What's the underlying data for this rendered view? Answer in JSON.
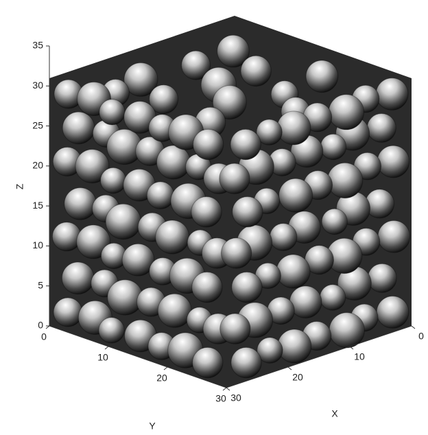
{
  "chart_data": {
    "type": "sphere3d",
    "xlabel": "X",
    "ylabel": "Y",
    "zlabel": "Z",
    "xlim": [
      0,
      30
    ],
    "ylim": [
      0,
      30
    ],
    "zlim": [
      0,
      35
    ],
    "xticks": [
      0,
      10,
      20,
      30
    ],
    "yticks": [
      0,
      10,
      20,
      30
    ],
    "zticks": [
      0,
      5,
      10,
      15,
      20,
      25,
      30,
      35
    ],
    "color": "#ffffff",
    "spheres": {
      "x": [
        29.0,
        28.6,
        29.3,
        28.8,
        29.1,
        28.7,
        29.4,
        29.0,
        28.6,
        29.3,
        28.8,
        29.1,
        28.7,
        29.4,
        29.0,
        28.6,
        29.3,
        28.8,
        29.1,
        28.7,
        29.4,
        29.0,
        28.6,
        29.3,
        28.8,
        29.1,
        28.7,
        29.4,
        29.0,
        28.6,
        29.3,
        28.8,
        29.1,
        28.7,
        29.4,
        29.0,
        28.6,
        29.3,
        28.8,
        29.1,
        28.7,
        29.4,
        29.0,
        28.6,
        29.3,
        28.8,
        29.1,
        28.7,
        29.4,
        2.1,
        6.3,
        9.8,
        14.2,
        18.1,
        21.7,
        26.2,
        3.8,
        7.9,
        12.1,
        16.0,
        20.3,
        24.1,
        28.0,
        1.9,
        6.0,
        10.2,
        13.8,
        18.3,
        22.0,
        26.1,
        4.2,
        8.1,
        11.8,
        16.2,
        19.9,
        24.2,
        27.8,
        2.0,
        5.8,
        10.1,
        14.0,
        17.9,
        22.2,
        26.0,
        3.9,
        8.2,
        12.0,
        15.8,
        20.1,
        23.9,
        28.1,
        2.2,
        6.1,
        9.9,
        14.1,
        18.2,
        21.8,
        26.3,
        5,
        12,
        19,
        25,
        8,
        15,
        22,
        4,
        11,
        18,
        24,
        14
      ],
      "y": [
        2.1,
        6.3,
        9.8,
        14.2,
        18.1,
        21.7,
        26.2,
        3.8,
        7.9,
        12.1,
        16.0,
        20.3,
        24.1,
        28.0,
        1.9,
        6.0,
        10.2,
        13.8,
        18.3,
        22.0,
        26.1,
        4.2,
        8.1,
        11.8,
        16.2,
        19.9,
        24.2,
        27.8,
        2.0,
        5.8,
        10.1,
        14.0,
        17.9,
        22.2,
        26.0,
        3.9,
        8.2,
        12.0,
        15.8,
        20.1,
        23.9,
        28.1,
        2.2,
        6.1,
        9.9,
        14.1,
        18.2,
        21.8,
        26.3,
        29.0,
        28.6,
        29.3,
        28.8,
        29.1,
        28.7,
        29.4,
        29.0,
        28.6,
        29.3,
        28.8,
        29.1,
        28.7,
        29.4,
        29.0,
        28.6,
        29.3,
        28.8,
        29.1,
        28.7,
        29.4,
        29.0,
        28.6,
        29.3,
        28.8,
        29.1,
        28.7,
        29.4,
        29.0,
        28.6,
        29.3,
        28.8,
        29.1,
        28.7,
        29.4,
        29.0,
        28.6,
        29.3,
        28.8,
        29.1,
        28.7,
        29.4,
        29.0,
        28.6,
        29.3,
        28.8,
        29.1,
        28.7,
        29.4,
        5,
        6,
        4,
        6,
        12,
        13,
        11,
        19,
        20,
        18,
        21,
        25
      ],
      "z": [
        2.0,
        2.3,
        1.8,
        2.1,
        1.9,
        2.2,
        2.0,
        6.7,
        7.0,
        6.5,
        6.8,
        6.9,
        6.6,
        6.7,
        11.4,
        11.7,
        11.2,
        11.5,
        11.3,
        11.6,
        11.4,
        16.1,
        16.4,
        15.9,
        16.2,
        16.0,
        16.3,
        16.1,
        20.8,
        21.1,
        20.6,
        20.9,
        20.7,
        21.0,
        20.8,
        25.5,
        25.8,
        25.3,
        25.6,
        25.4,
        25.7,
        25.5,
        29.3,
        29.6,
        29.1,
        29.4,
        29.2,
        29.5,
        29.3,
        2.0,
        2.3,
        1.8,
        2.1,
        1.9,
        2.2,
        2.0,
        6.7,
        7.0,
        6.5,
        6.8,
        6.9,
        6.6,
        6.7,
        11.4,
        11.7,
        11.2,
        11.5,
        11.3,
        11.6,
        11.4,
        16.1,
        16.4,
        15.9,
        16.2,
        16.0,
        16.3,
        16.1,
        20.8,
        21.1,
        20.6,
        20.9,
        20.7,
        21.0,
        20.8,
        25.5,
        25.8,
        25.3,
        25.6,
        25.4,
        25.7,
        25.5,
        29.3,
        29.6,
        29.1,
        29.4,
        29.2,
        29.5,
        29.3,
        29.2,
        29.5,
        29.0,
        29.4,
        29.3,
        29.6,
        29.1,
        29.4,
        29.2,
        29.5,
        29.3,
        29.1
      ],
      "r": [
        1.8,
        2.1,
        1.6,
        2.0,
        1.7,
        2.2,
        1.9,
        2.0,
        1.7,
        2.2,
        1.8,
        2.1,
        1.6,
        1.9,
        1.8,
        2.1,
        1.6,
        2.0,
        1.7,
        2.2,
        1.9,
        2.0,
        1.7,
        2.2,
        1.8,
        2.1,
        1.6,
        1.9,
        1.8,
        2.1,
        1.6,
        2.0,
        1.7,
        2.2,
        1.9,
        2.0,
        1.7,
        2.2,
        1.8,
        2.1,
        1.6,
        1.9,
        1.8,
        2.1,
        1.6,
        2.0,
        1.7,
        2.2,
        1.9,
        2.0,
        1.7,
        2.2,
        1.8,
        2.1,
        1.6,
        1.9,
        1.8,
        2.1,
        1.6,
        2.0,
        1.7,
        2.2,
        1.9,
        2.0,
        1.7,
        2.2,
        1.8,
        2.1,
        1.6,
        1.9,
        1.8,
        2.1,
        1.6,
        2.0,
        1.7,
        2.2,
        1.9,
        2.0,
        1.7,
        2.2,
        1.8,
        2.1,
        1.6,
        1.9,
        1.8,
        2.1,
        1.6,
        2.0,
        1.7,
        2.2,
        1.9,
        2.0,
        1.7,
        2.2,
        1.8,
        2.1,
        1.6,
        1.9,
        2.0,
        1.8,
        2.1,
        1.7,
        1.9,
        2.2,
        1.8,
        2.0,
        1.7,
        2.1,
        1.9,
        1.8
      ]
    }
  }
}
